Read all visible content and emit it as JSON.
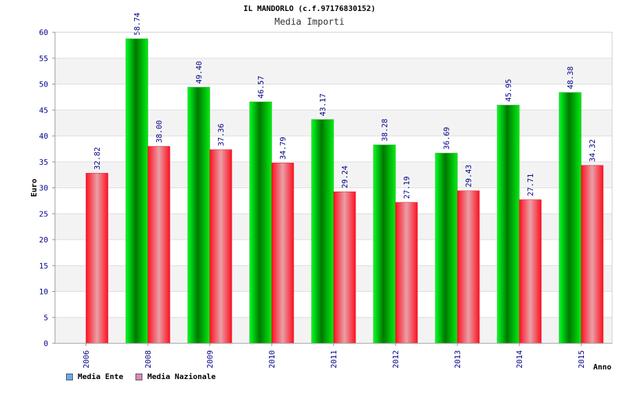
{
  "chart_data": {
    "type": "bar",
    "title": "IL MANDORLO (c.f.97176830152)",
    "subtitle": "Media Importi",
    "xlabel": "Anno",
    "ylabel": "Euro",
    "ylim": [
      0,
      60
    ],
    "yticks": [
      0,
      5,
      10,
      15,
      20,
      25,
      30,
      35,
      40,
      45,
      50,
      55,
      60
    ],
    "grid": true,
    "legend_position": "bottom-left",
    "categories": [
      "2006",
      "2008",
      "2009",
      "2010",
      "2011",
      "2012",
      "2013",
      "2014",
      "2015"
    ],
    "series": [
      {
        "name": "Media Ente",
        "legend_color": "#66aaee",
        "bar_color": "#00cc00",
        "values": [
          null,
          58.74,
          49.4,
          46.57,
          43.17,
          38.28,
          36.69,
          45.95,
          48.38
        ],
        "labels": [
          "",
          "58.74",
          "49.40",
          "46.57",
          "43.17",
          "38.28",
          "36.69",
          "45.95",
          "48.38"
        ]
      },
      {
        "name": "Media Nazionale",
        "legend_color": "#dd88bb",
        "bar_color": "#ff2233",
        "values": [
          32.82,
          38.0,
          37.36,
          34.79,
          29.24,
          27.19,
          29.43,
          27.71,
          34.32
        ],
        "labels": [
          "32.82",
          "38.00",
          "37.36",
          "34.79",
          "29.24",
          "27.19",
          "29.43",
          "27.71",
          "34.32"
        ]
      }
    ]
  }
}
